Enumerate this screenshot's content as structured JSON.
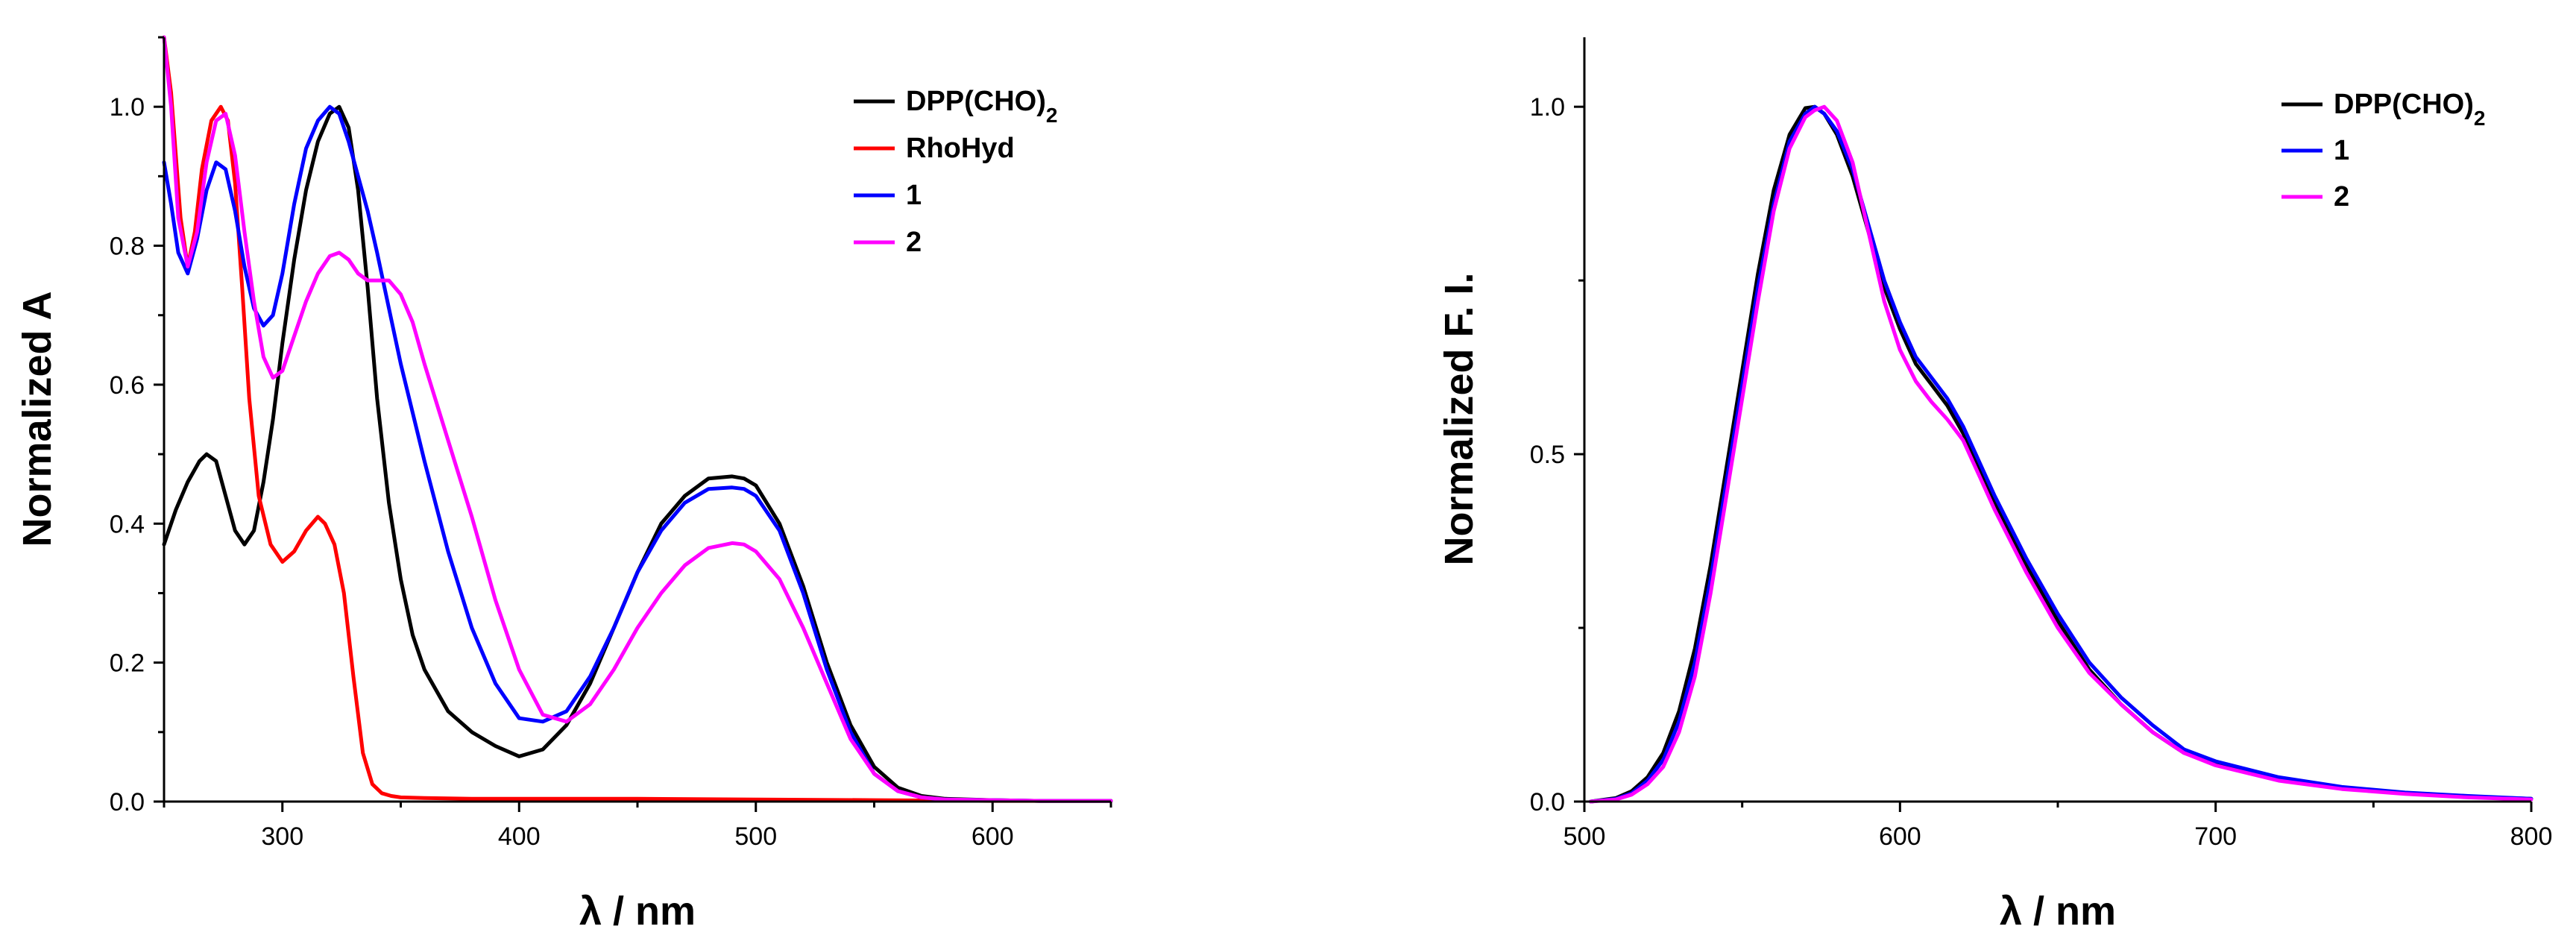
{
  "chart_data": [
    {
      "type": "line",
      "title": "",
      "xlabel": "λ / nm",
      "ylabel": "Normalized A",
      "xlim": [
        250,
        650
      ],
      "ylim": [
        0,
        1.1
      ],
      "xticks": [
        300,
        400,
        500,
        600
      ],
      "xtick_labels": [
        "300",
        "400",
        "500",
        "600"
      ],
      "yticks": [
        0.0,
        0.2,
        0.4,
        0.6,
        0.8,
        1.0
      ],
      "ytick_labels": [
        "0.0",
        "0.2",
        "0.4",
        "0.6",
        "0.8",
        "1.0"
      ],
      "grid": false,
      "legend_position": "top-right",
      "series": [
        {
          "name": "DPP(CHO)2",
          "label_main": "DPP(CHO)",
          "label_sub": "2",
          "color": "#000000",
          "x": [
            250,
            255,
            260,
            265,
            268,
            272,
            276,
            280,
            284,
            288,
            292,
            296,
            300,
            305,
            310,
            315,
            320,
            324,
            328,
            332,
            336,
            340,
            345,
            350,
            355,
            360,
            370,
            380,
            390,
            400,
            410,
            420,
            430,
            440,
            450,
            460,
            470,
            480,
            490,
            495,
            500,
            510,
            520,
            530,
            540,
            550,
            560,
            570,
            580,
            600,
            620,
            650
          ],
          "y": [
            0.37,
            0.42,
            0.46,
            0.49,
            0.5,
            0.49,
            0.44,
            0.39,
            0.37,
            0.39,
            0.46,
            0.55,
            0.66,
            0.78,
            0.88,
            0.95,
            0.99,
            1.0,
            0.97,
            0.88,
            0.74,
            0.58,
            0.43,
            0.32,
            0.24,
            0.19,
            0.13,
            0.1,
            0.08,
            0.065,
            0.075,
            0.11,
            0.17,
            0.25,
            0.33,
            0.4,
            0.44,
            0.465,
            0.468,
            0.465,
            0.455,
            0.4,
            0.31,
            0.2,
            0.11,
            0.05,
            0.02,
            0.008,
            0.004,
            0.002,
            0.001,
            0.001
          ]
        },
        {
          "name": "RhoHyd",
          "label_main": "RhoHyd",
          "label_sub": "",
          "color": "#ff0000",
          "x": [
            250,
            253,
            257,
            260,
            263,
            266,
            270,
            274,
            277,
            280,
            283,
            286,
            290,
            295,
            300,
            305,
            310,
            315,
            318,
            322,
            326,
            330,
            334,
            338,
            342,
            346,
            350,
            360,
            380,
            400,
            450,
            500,
            550,
            600,
            650
          ],
          "y": [
            1.1,
            1.02,
            0.84,
            0.77,
            0.82,
            0.91,
            0.98,
            1.0,
            0.98,
            0.89,
            0.74,
            0.58,
            0.44,
            0.37,
            0.345,
            0.36,
            0.39,
            0.41,
            0.4,
            0.37,
            0.3,
            0.18,
            0.07,
            0.025,
            0.012,
            0.008,
            0.006,
            0.005,
            0.004,
            0.004,
            0.004,
            0.003,
            0.002,
            0.001,
            0.001
          ]
        },
        {
          "name": "1",
          "label_main": "1",
          "label_sub": "",
          "color": "#0000ff",
          "x": [
            250,
            253,
            256,
            260,
            264,
            268,
            272,
            276,
            280,
            284,
            288,
            292,
            296,
            300,
            305,
            310,
            315,
            320,
            324,
            328,
            332,
            336,
            340,
            345,
            350,
            360,
            370,
            380,
            390,
            400,
            410,
            420,
            430,
            440,
            450,
            460,
            470,
            480,
            490,
            495,
            500,
            510,
            520,
            530,
            540,
            550,
            560,
            570,
            580,
            600,
            620,
            650
          ],
          "y": [
            0.92,
            0.86,
            0.79,
            0.76,
            0.81,
            0.88,
            0.92,
            0.91,
            0.85,
            0.77,
            0.71,
            0.685,
            0.7,
            0.76,
            0.86,
            0.94,
            0.98,
            1.0,
            0.99,
            0.95,
            0.9,
            0.85,
            0.79,
            0.71,
            0.63,
            0.49,
            0.36,
            0.25,
            0.17,
            0.12,
            0.115,
            0.13,
            0.18,
            0.25,
            0.33,
            0.39,
            0.43,
            0.45,
            0.452,
            0.45,
            0.44,
            0.39,
            0.3,
            0.19,
            0.1,
            0.04,
            0.015,
            0.006,
            0.003,
            0.002,
            0.001,
            0.001
          ]
        },
        {
          "name": "2",
          "label_main": "2",
          "label_sub": "",
          "color": "#ff00ff",
          "x": [
            250,
            253,
            256,
            260,
            264,
            268,
            272,
            276,
            280,
            284,
            288,
            292,
            296,
            300,
            305,
            310,
            315,
            320,
            324,
            328,
            332,
            336,
            340,
            345,
            350,
            355,
            360,
            370,
            380,
            390,
            400,
            410,
            420,
            430,
            440,
            450,
            460,
            470,
            480,
            490,
            495,
            500,
            510,
            520,
            530,
            540,
            550,
            560,
            570,
            580,
            600,
            620,
            650
          ],
          "y": [
            1.1,
            1.0,
            0.84,
            0.77,
            0.82,
            0.92,
            0.98,
            0.99,
            0.93,
            0.82,
            0.72,
            0.64,
            0.61,
            0.62,
            0.67,
            0.72,
            0.76,
            0.785,
            0.79,
            0.78,
            0.76,
            0.75,
            0.75,
            0.75,
            0.73,
            0.69,
            0.63,
            0.52,
            0.41,
            0.29,
            0.19,
            0.125,
            0.115,
            0.14,
            0.19,
            0.25,
            0.3,
            0.34,
            0.365,
            0.372,
            0.37,
            0.36,
            0.32,
            0.25,
            0.17,
            0.09,
            0.04,
            0.015,
            0.006,
            0.003,
            0.002,
            0.001,
            0.001
          ]
        }
      ]
    },
    {
      "type": "line",
      "title": "",
      "xlabel": "λ / nm",
      "ylabel": "Normalized F. I.",
      "xlim": [
        500,
        800
      ],
      "ylim": [
        0,
        1.1
      ],
      "xticks": [
        500,
        600,
        700,
        800
      ],
      "xtick_labels": [
        "500",
        "600",
        "700",
        "800"
      ],
      "yticks": [
        0.0,
        0.5,
        1.0
      ],
      "ytick_labels": [
        "0.0",
        "0.5",
        "1.0"
      ],
      "grid": false,
      "legend_position": "top-right",
      "series": [
        {
          "name": "DPP(CHO)2",
          "label_main": "DPP(CHO)",
          "label_sub": "2",
          "color": "#000000",
          "x": [
            502,
            510,
            515,
            520,
            525,
            530,
            535,
            540,
            545,
            550,
            555,
            560,
            565,
            570,
            573,
            576,
            580,
            585,
            590,
            595,
            600,
            605,
            610,
            615,
            620,
            625,
            630,
            640,
            650,
            660,
            670,
            680,
            690,
            700,
            720,
            740,
            760,
            780,
            800
          ],
          "y": [
            0.0,
            0.005,
            0.015,
            0.035,
            0.07,
            0.13,
            0.22,
            0.34,
            0.48,
            0.62,
            0.76,
            0.88,
            0.96,
            0.998,
            1.0,
            0.99,
            0.96,
            0.9,
            0.82,
            0.74,
            0.68,
            0.63,
            0.6,
            0.57,
            0.53,
            0.48,
            0.43,
            0.34,
            0.26,
            0.19,
            0.14,
            0.1,
            0.07,
            0.055,
            0.033,
            0.02,
            0.012,
            0.007,
            0.004
          ]
        },
        {
          "name": "1",
          "label_main": "1",
          "label_sub": "",
          "color": "#0000ff",
          "x": [
            502,
            510,
            515,
            520,
            525,
            530,
            535,
            540,
            545,
            550,
            555,
            560,
            565,
            570,
            573,
            576,
            580,
            585,
            590,
            595,
            600,
            605,
            610,
            615,
            620,
            625,
            630,
            640,
            650,
            660,
            670,
            680,
            690,
            700,
            720,
            740,
            760,
            780,
            800
          ],
          "y": [
            0.0,
            0.004,
            0.012,
            0.03,
            0.06,
            0.115,
            0.2,
            0.32,
            0.46,
            0.6,
            0.74,
            0.86,
            0.95,
            0.99,
            1.0,
            0.99,
            0.965,
            0.91,
            0.83,
            0.75,
            0.69,
            0.64,
            0.61,
            0.58,
            0.54,
            0.49,
            0.44,
            0.35,
            0.27,
            0.2,
            0.15,
            0.11,
            0.075,
            0.058,
            0.035,
            0.021,
            0.013,
            0.008,
            0.004
          ]
        },
        {
          "name": "2",
          "label_main": "2",
          "label_sub": "",
          "color": "#ff00ff",
          "x": [
            502,
            510,
            515,
            520,
            525,
            530,
            535,
            540,
            545,
            550,
            555,
            560,
            565,
            570,
            573,
            576,
            580,
            585,
            590,
            595,
            600,
            605,
            610,
            615,
            620,
            625,
            630,
            640,
            650,
            660,
            670,
            680,
            690,
            700,
            720,
            740,
            760,
            780,
            800
          ],
          "y": [
            0.0,
            0.003,
            0.01,
            0.025,
            0.05,
            0.1,
            0.18,
            0.3,
            0.44,
            0.58,
            0.72,
            0.85,
            0.94,
            0.985,
            0.995,
            1.0,
            0.98,
            0.92,
            0.82,
            0.72,
            0.65,
            0.605,
            0.575,
            0.55,
            0.52,
            0.47,
            0.42,
            0.33,
            0.25,
            0.185,
            0.14,
            0.1,
            0.07,
            0.052,
            0.03,
            0.018,
            0.011,
            0.006,
            0.003
          ]
        }
      ]
    }
  ]
}
